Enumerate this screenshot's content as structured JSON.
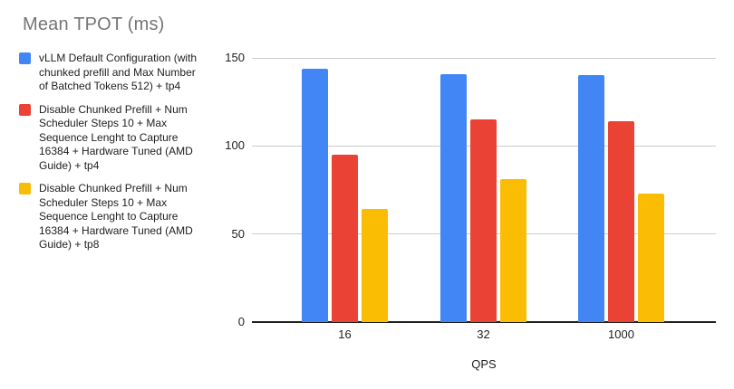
{
  "title": "Mean TPOT (ms)",
  "chart_data": {
    "type": "bar",
    "title": "Mean TPOT (ms)",
    "xlabel": "QPS",
    "ylabel": "",
    "categories": [
      "16",
      "32",
      "1000"
    ],
    "series": [
      {
        "name": "vLLM Default Configuration (with chunked prefill and Max Number of Batched Tokens 512) + tp4",
        "color": "#4285F4",
        "values": [
          144,
          141,
          140
        ]
      },
      {
        "name": "Disable Chunked Prefill + Num Scheduler Steps 10 + Max Sequence Lenght to Capture 16384 + Hardware Tuned (AMD Guide) + tp4",
        "color": "#EA4335",
        "values": [
          95,
          115,
          114
        ]
      },
      {
        "name": "Disable Chunked Prefill + Num Scheduler Steps 10 + Max Sequence Lenght to Capture 16384 + Hardware Tuned (AMD Guide) + tp8",
        "color": "#FBBC04",
        "values": [
          64,
          81,
          73
        ]
      }
    ],
    "ylim": [
      0,
      150
    ],
    "yticks": [
      0,
      50,
      100,
      150
    ],
    "grid": true,
    "legend_position": "left"
  },
  "colors": {
    "background": "#ffffff",
    "title_text": "#757575",
    "axis_text": "#212121",
    "legend_text": "#212121",
    "gridline": "#cccccc",
    "axis_line": "#212121"
  }
}
